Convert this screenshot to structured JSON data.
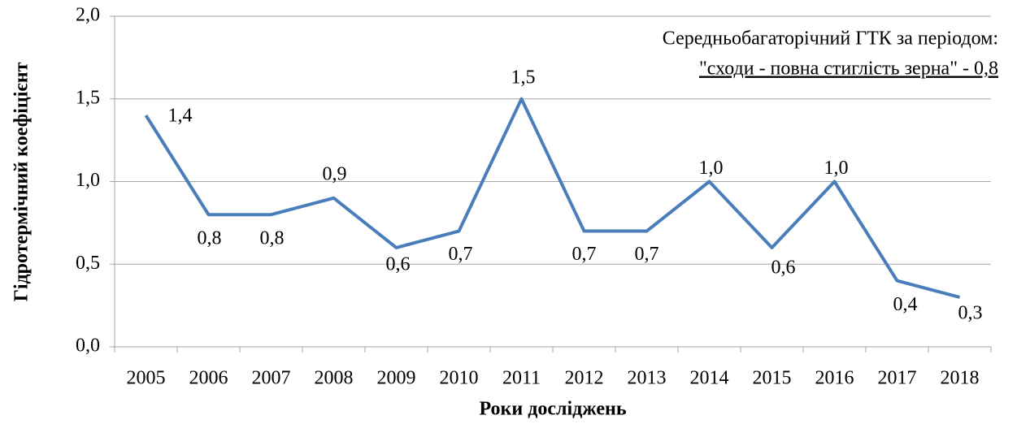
{
  "chart_data": {
    "type": "line",
    "annotation": [
      "Середньобагаторічний ГТК за періодом:",
      "\"сходи - повна стиглість зерна\" - 0,8"
    ],
    "x_label": "Роки досліджень",
    "y_label": "Гідротермічний коефіцієнт",
    "categories": [
      "2005",
      "2006",
      "2007",
      "2008",
      "2009",
      "2010",
      "2011",
      "2012",
      "2013",
      "2014",
      "2015",
      "2016",
      "2017",
      "2018"
    ],
    "values": [
      1.4,
      0.8,
      0.8,
      0.9,
      0.6,
      0.7,
      1.5,
      0.7,
      0.7,
      1.0,
      0.6,
      1.0,
      0.4,
      0.3
    ],
    "value_labels": [
      "1,4",
      "0,8",
      "0,8",
      "0,9",
      "0,6",
      "0,7",
      "1,5",
      "0,7",
      "0,7",
      "1,0",
      "0,6",
      "1,0",
      "0,4",
      "0,3"
    ],
    "color": "#4a7ebb",
    "ylim": [
      0,
      2
    ],
    "yticks": [
      {
        "value": 0,
        "label": "0,0"
      },
      {
        "value": 0.5,
        "label": "0,5"
      },
      {
        "value": 1,
        "label": "1,0"
      },
      {
        "value": 1.5,
        "label": "1,5"
      },
      {
        "value": 2,
        "label": "2,0"
      }
    ],
    "grid": true
  }
}
